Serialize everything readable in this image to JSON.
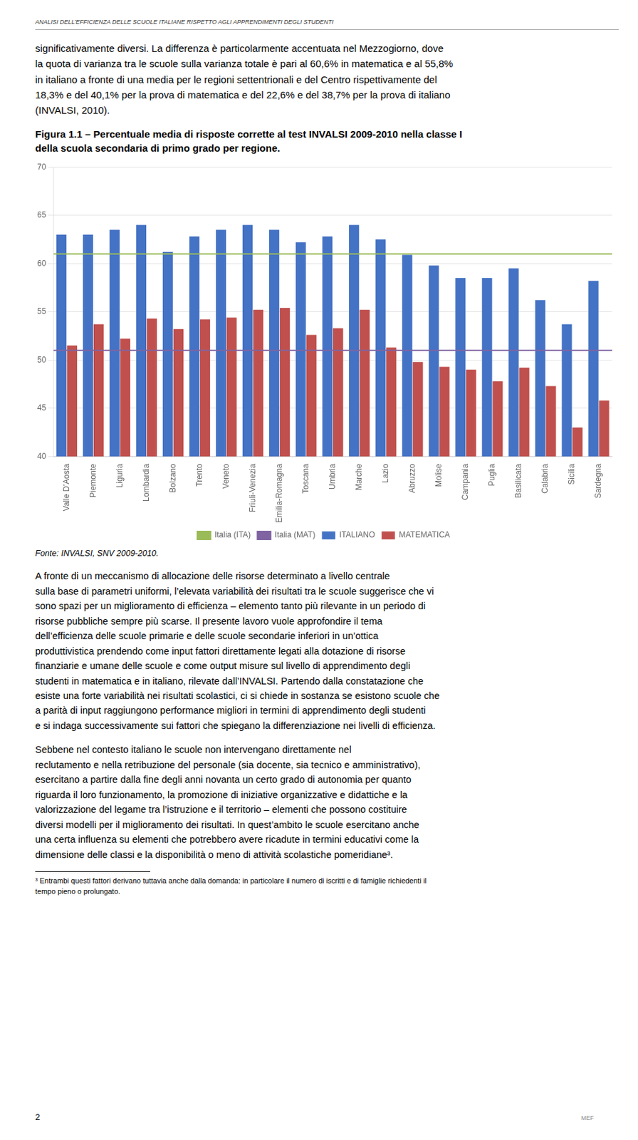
{
  "header": "ANALISI DELL’EFFICIENZA DELLE SCUOLE ITALIANE RISPETTO AGLI APPRENDIMENTI DEGLI STUDENTI",
  "para1": "significativamente diversi. La differenza è particolarmente accentuata nel Mezzogiorno, dove\nla quota di varianza tra le scuole sulla varianza totale è pari al 60,6% in matematica e al 55,8%\nin italiano a fronte di una media per le regioni settentrionali e del Centro rispettivamente del\n18,3% e del 40,1% per la prova di matematica e del 22,6% e del 38,7% per la prova di italiano\n(INVALSI, 2010).",
  "chart_data": {
    "type": "bar",
    "title": "Figura 1.1 – Percentuale media di risposte corrette al test INVALSI 2009-2010 nella classe I\ndella scuola secondaria di primo grado per regione.",
    "categories": [
      "Valle D’Aosta",
      "Piemonte",
      "Liguria",
      "Lombardia",
      "Bolzano",
      "Trento",
      "Veneto",
      "Friuli-Venezia",
      "Emilia-Romagna",
      "Toscana",
      "Umbria",
      "Marche",
      "Lazio",
      "Abruzzo",
      "Molise",
      "Campania",
      "Puglia",
      "Basilicata",
      "Calabria",
      "Sicilia",
      "Sardegna"
    ],
    "series": [
      {
        "name": "ITALIANO",
        "color": "#4472C4",
        "values": [
          63.0,
          63.0,
          63.5,
          64.0,
          61.2,
          62.8,
          63.5,
          64.0,
          63.5,
          62.2,
          62.8,
          64.0,
          62.5,
          60.9,
          59.8,
          58.5,
          58.5,
          59.5,
          56.2,
          53.7,
          58.2
        ]
      },
      {
        "name": "MATEMATICA",
        "color": "#C0504D",
        "values": [
          51.5,
          53.7,
          52.2,
          54.3,
          53.2,
          54.2,
          54.4,
          55.2,
          55.4,
          52.6,
          53.3,
          55.2,
          51.3,
          49.8,
          49.3,
          49.0,
          47.8,
          49.2,
          47.3,
          43.0,
          45.8
        ]
      }
    ],
    "reference_lines": [
      {
        "name": "Italia (ITA)",
        "color": "#9BBB59",
        "value": 61.0
      },
      {
        "name": "Italia (MAT)",
        "color": "#8064A2",
        "value": 51.0
      }
    ],
    "ylim": [
      40,
      70
    ],
    "yticks": [
      40,
      45,
      50,
      55,
      60,
      65,
      70
    ],
    "grid": true,
    "legend": "bottom",
    "source": "Fonte: INVALSI, SNV 2009-2010."
  },
  "para2": "A fronte di un meccanismo di allocazione delle risorse determinato a livello centrale\nsulla base di parametri uniformi, l’elevata variabilità dei risultati tra le scuole suggerisce che vi\nsono spazi per un miglioramento di efficienza – elemento tanto più rilevante in un periodo di\nrisorse pubbliche sempre più scarse. Il presente lavoro vuole approfondire il tema\ndell’efficienza delle scuole primarie e delle scuole secondarie inferiori in un’ottica\nproduttivistica prendendo come input fattori direttamente legati alla dotazione di risorse\nfinanziarie e umane delle scuole e come output misure sul livello di apprendimento degli\nstudenti in matematica e in italiano, rilevate dall’INVALSI. Partendo dalla constatazione che\nesiste una forte variabilità nei risultati scolastici, ci si chiede in sostanza se esistono scuole che\na parità di input raggiungono performance migliori in termini di apprendimento degli studenti\ne si indaga successivamente sui fattori che spiegano la differenziazione nei livelli di efficienza.",
  "para3": "Sebbene nel contesto italiano le scuole non intervengano direttamente nel\nreclutamento e nella retribuzione del personale (sia docente, sia tecnico e amministrativo),\nesercitano a partire dalla fine degli anni novanta un certo grado di autonomia per quanto\nriguarda il loro funzionamento, la promozione di iniziative organizzative e didattiche e la\nvalorizzazione del legame tra l’istruzione e il territorio – elementi che possono costituire\ndiversi modelli per il miglioramento dei risultati. In quest’ambito le scuole esercitano anche\nuna certa influenza su elementi che potrebbero avere ricadute in termini educativi come la\ndimensione delle classi e la disponibilità o meno di attività scolastiche pomeridiane³.",
  "footnote": "³ Entrambi questi fattori derivano tuttavia anche dalla domanda: in particolare il numero di iscritti e di famiglie richiedenti il\ntempo pieno o prolungato.",
  "page_num": "2",
  "logo": "MEF"
}
